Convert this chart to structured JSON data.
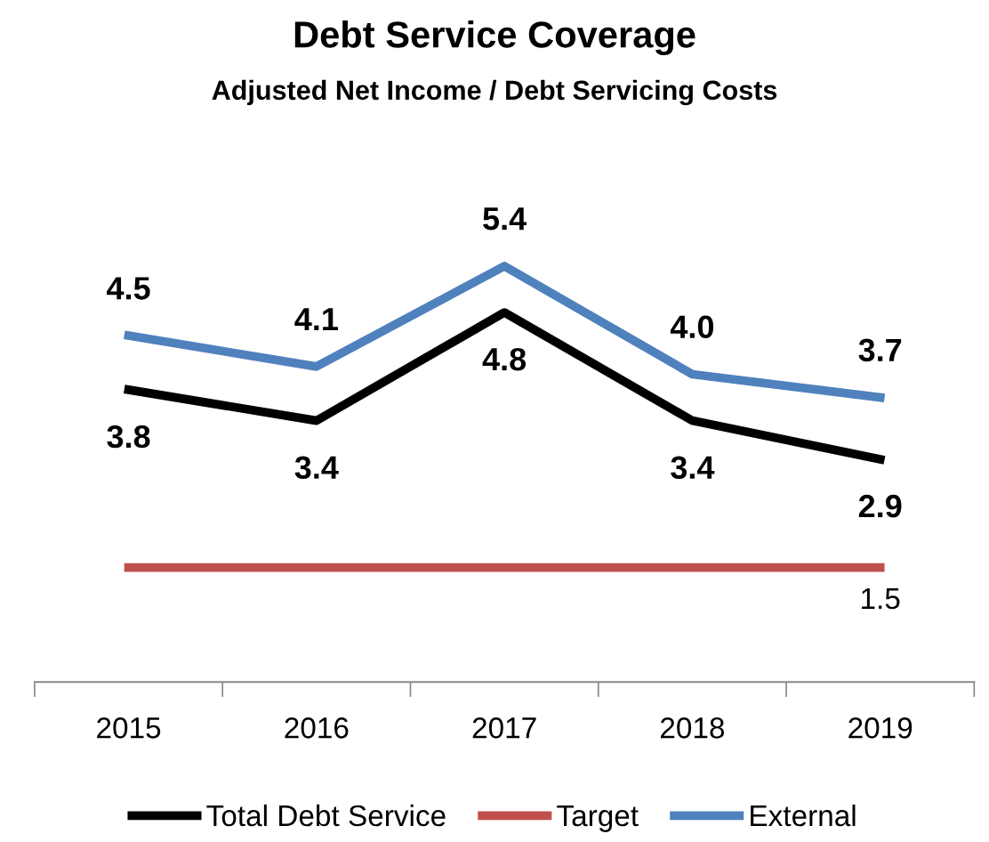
{
  "chart_data": {
    "type": "line",
    "title": "Debt Service Coverage",
    "subtitle": "Adjusted Net Income / Debt Servicing Costs",
    "categories": [
      "2015",
      "2016",
      "2017",
      "2018",
      "2019"
    ],
    "tick_labels": "x",
    "grid": false,
    "legend": "bottom",
    "marker": "none",
    "line_style": "solid",
    "series": [
      {
        "name": "Total Debt Service",
        "color": "#000000",
        "values": [
          3.8,
          3.4,
          4.8,
          3.4,
          2.9
        ],
        "value_labels": [
          "3.8",
          "3.4",
          "4.8",
          "3.4",
          "2.9"
        ]
      },
      {
        "name": "Target",
        "color": "#c0504d",
        "values": [
          1.5,
          1.5,
          1.5,
          1.5,
          1.5
        ],
        "value_labels": [
          null,
          null,
          null,
          null,
          "1.5"
        ]
      },
      {
        "name": "External",
        "color": "#4f81bd",
        "values": [
          4.5,
          4.1,
          5.4,
          4.0,
          3.7
        ],
        "value_labels": [
          "4.5",
          "4.1",
          "5.4",
          "4.0",
          "3.7"
        ]
      }
    ]
  }
}
